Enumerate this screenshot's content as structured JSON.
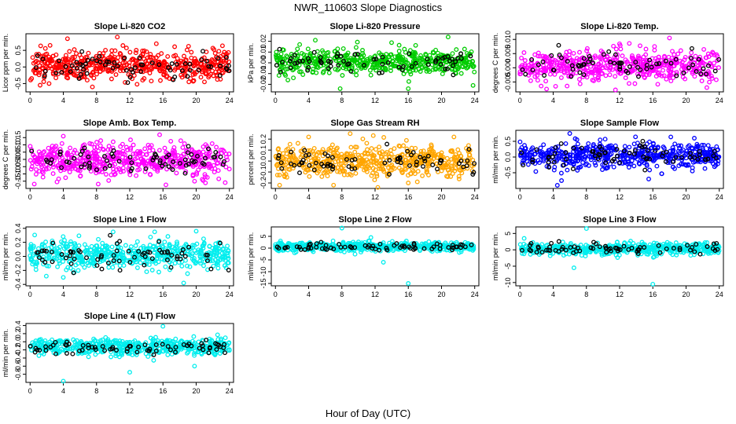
{
  "figure": {
    "title": "NWR_110603  Slope Diagnostics",
    "xlabel": "Hour of Day (UTC)"
  },
  "chart_data": [
    {
      "type": "scatter",
      "title": "Slope Li-820 CO2",
      "ylabel": "Licor ppm per min.",
      "xlim": [
        -0.5,
        24.5
      ],
      "ylim": [
        -0.75,
        1.0
      ],
      "yticks": [
        -0.5,
        0.0,
        0.5
      ],
      "ytick_labels": [
        "-0.5",
        "0.0",
        "0.5"
      ],
      "xticks": [
        0,
        4,
        8,
        12,
        16,
        20,
        24
      ],
      "color": "#ff0000",
      "highlight_color": "#000000",
      "center": 0.05,
      "spread": 0.22,
      "outliers": [
        [
          4.5,
          0.85
        ],
        [
          10.5,
          0.9
        ],
        [
          1.2,
          -0.55
        ],
        [
          7.5,
          -0.6
        ],
        [
          21,
          -0.45
        ],
        [
          15.2,
          0.7
        ]
      ]
    },
    {
      "type": "scatter",
      "title": "Slope Li-820 Pressure",
      "ylabel": "kPa per min.",
      "xlim": [
        -0.5,
        24.5
      ],
      "ylim": [
        -0.027,
        0.027
      ],
      "yticks": [
        -0.02,
        -0.01,
        0.0,
        0.01,
        0.02
      ],
      "ytick_labels": [
        "-0.02",
        "-0.01",
        "0.00",
        "0.01",
        "0.02"
      ],
      "xticks": [
        0,
        4,
        8,
        12,
        16,
        20,
        24
      ],
      "color": "#00cc00",
      "highlight_color": "#000000",
      "center": 0.001,
      "spread": 0.0055,
      "outliers": [
        [
          1.5,
          -0.016
        ],
        [
          7.8,
          -0.024
        ],
        [
          16,
          -0.024
        ],
        [
          23.8,
          -0.021
        ],
        [
          20.8,
          0.024
        ],
        [
          4.8,
          0.021
        ]
      ]
    },
    {
      "type": "scatter",
      "title": "Slope Li-820 Temp.",
      "ylabel": "degrees C per min.",
      "xlim": [
        -0.5,
        24.5
      ],
      "ylim": [
        -0.0085,
        0.012
      ],
      "yticks": [
        -0.005,
        0.0,
        0.005,
        0.01
      ],
      "ytick_labels": [
        "-0.005",
        "0.000",
        "0.005",
        "0.010"
      ],
      "xticks": [
        0,
        4,
        8,
        12,
        16,
        20,
        24
      ],
      "color": "#ff00ff",
      "highlight_color": "#000000",
      "center": 0.0005,
      "spread": 0.0028,
      "outliers": [
        [
          18,
          0.0105
        ],
        [
          3.2,
          -0.0075
        ],
        [
          11.5,
          -0.0078
        ],
        [
          16.2,
          0.0075
        ],
        [
          22.5,
          -0.007
        ]
      ]
    },
    {
      "type": "scatter",
      "title": "Slope Amb. Box Temp.",
      "ylabel": "degrees C per min.",
      "xlim": [
        -0.5,
        24.5
      ],
      "ylim": [
        -0.2,
        0.2
      ],
      "yticks": [
        -0.15,
        -0.1,
        -0.05,
        0.0,
        0.05,
        0.1,
        0.15
      ],
      "ytick_labels": [
        "-0.15",
        "-0.10",
        "-0.05",
        "0.00",
        "0.05",
        "0.10",
        "0.15"
      ],
      "xticks": [
        0,
        4,
        8,
        12,
        16,
        20,
        24
      ],
      "color": "#ff00ff",
      "highlight_color": "#000000",
      "center": 0.0,
      "spread": 0.055,
      "outliers": [
        [
          15.6,
          0.17
        ],
        [
          0.5,
          -0.17
        ],
        [
          8.2,
          -0.17
        ],
        [
          19.8,
          -0.15
        ],
        [
          23.5,
          -0.16
        ],
        [
          4,
          0.16
        ]
      ]
    },
    {
      "type": "scatter",
      "title": "Slope Gas Stream RH",
      "ylabel": "percent per min.",
      "xlim": [
        -0.5,
        24.5
      ],
      "ylim": [
        -0.25,
        0.28
      ],
      "yticks": [
        -0.2,
        -0.1,
        0.0,
        0.1,
        0.2
      ],
      "ytick_labels": [
        "-0.2",
        "-0.1",
        "0.0",
        "0.1",
        "0.2"
      ],
      "xticks": [
        0,
        4,
        8,
        12,
        16,
        20,
        24
      ],
      "color": "#ffa500",
      "highlight_color": "#000000",
      "center": 0.0,
      "spread": 0.075,
      "outliers": [
        [
          4,
          0.22
        ],
        [
          9,
          0.25
        ],
        [
          21.5,
          0.22
        ],
        [
          7,
          -0.22
        ],
        [
          16,
          -0.2
        ],
        [
          0.5,
          -0.22
        ]
      ]
    },
    {
      "type": "scatter",
      "title": "Slope Sample Flow",
      "ylabel": "ml/min per min.",
      "xlim": [
        -0.5,
        24.5
      ],
      "ylim": [
        -1.0,
        0.85
      ],
      "yticks": [
        -0.5,
        0.0,
        0.5
      ],
      "ytick_labels": [
        "-0.5",
        "0.0",
        "0.5"
      ],
      "xticks": [
        0,
        4,
        8,
        12,
        16,
        20,
        24
      ],
      "color": "#0000ff",
      "highlight_color": "#000000",
      "center": 0.05,
      "spread": 0.2,
      "outliers": [
        [
          6,
          0.75
        ],
        [
          4.5,
          -0.9
        ],
        [
          5,
          -0.75
        ],
        [
          15.5,
          -0.7
        ],
        [
          21,
          0.6
        ]
      ]
    },
    {
      "type": "scatter",
      "title": "Slope Line 1 Flow",
      "ylabel": "ml/min per min.",
      "xlim": [
        -0.5,
        24.5
      ],
      "ylim": [
        -0.42,
        0.42
      ],
      "yticks": [
        -0.4,
        -0.2,
        0.0,
        0.2,
        0.4
      ],
      "ytick_labels": [
        "-0.4",
        "-0.2",
        "0.0",
        "0.2",
        "0.4"
      ],
      "xticks": [
        0,
        4,
        8,
        12,
        16,
        20,
        24
      ],
      "color": "#00eeee",
      "highlight_color": "#000000",
      "center": 0.02,
      "spread": 0.1,
      "outliers": [
        [
          18.5,
          -0.38
        ],
        [
          4,
          -0.3
        ],
        [
          10,
          0.35
        ],
        [
          15,
          0.35
        ],
        [
          20,
          0.36
        ]
      ]
    },
    {
      "type": "scatter",
      "title": "Slope Line 2 Flow",
      "ylabel": "ml/min per min.",
      "xlim": [
        -0.5,
        24.5
      ],
      "ylim": [
        -16,
        9
      ],
      "yticks": [
        -15,
        -10,
        -5,
        0,
        5
      ],
      "ytick_labels": [
        "-15",
        "-10",
        "-5",
        "0",
        "5"
      ],
      "xticks": [
        0,
        4,
        8,
        12,
        16,
        20,
        24
      ],
      "color": "#00eeee",
      "highlight_color": "#000000",
      "center": 0.6,
      "spread": 0.9,
      "outliers": [
        [
          16,
          -15
        ],
        [
          8,
          8.5
        ],
        [
          11.5,
          4.5
        ],
        [
          13,
          -6
        ]
      ]
    },
    {
      "type": "scatter",
      "title": "Slope Line 3 Flow",
      "ylabel": "ml/min per min.",
      "xlim": [
        -0.5,
        24.5
      ],
      "ylim": [
        -11,
        7
      ],
      "yticks": [
        -10,
        -5,
        0,
        5
      ],
      "ytick_labels": [
        "-10",
        "-5",
        "0",
        "5"
      ],
      "xticks": [
        0,
        4,
        8,
        12,
        16,
        20,
        24
      ],
      "color": "#00eeee",
      "highlight_color": "#000000",
      "center": 0.3,
      "spread": 0.9,
      "outliers": [
        [
          8,
          6.5
        ],
        [
          16,
          -10.5
        ],
        [
          6.5,
          -5.5
        ],
        [
          0.5,
          3.5
        ]
      ]
    },
    {
      "type": "scatter",
      "title": "Slope Line 4 (LT) Flow",
      "ylabel": "ml/min per min.",
      "xlim": [
        -0.5,
        24.5
      ],
      "ylim": [
        -1.0,
        0.45
      ],
      "yticks": [
        -0.8,
        -0.6,
        -0.4,
        -0.2,
        0.0,
        0.2,
        0.4
      ],
      "ytick_labels": [
        "-0.8",
        "-0.6",
        "-0.4",
        "-0.2",
        "0.0",
        "0.2",
        "0.4"
      ],
      "xticks": [
        0,
        4,
        8,
        12,
        16,
        20,
        24
      ],
      "color": "#00eeee",
      "highlight_color": "#000000",
      "center": -0.12,
      "spread": 0.1,
      "outliers": [
        [
          4,
          -0.97
        ],
        [
          12,
          -0.75
        ],
        [
          19.8,
          -0.6
        ],
        [
          16,
          0.38
        ]
      ]
    }
  ]
}
